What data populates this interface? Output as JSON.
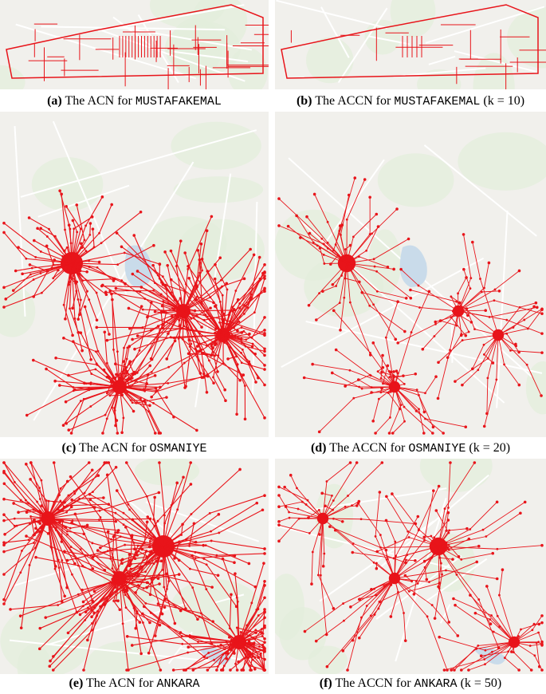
{
  "panels": [
    {
      "label": "(a)",
      "text": "The ACN for",
      "name": "MUSTAFAKEMAL"
    },
    {
      "label": "(b)",
      "text": "The ACCN for",
      "name": "MUSTAFAKEMAL",
      "param": "(k = 10)"
    },
    {
      "label": "(c)",
      "text": "The ACN for",
      "name": "OSMANIYE"
    },
    {
      "label": "(d)",
      "text": "The ACCN for",
      "name": "OSMANIYE",
      "param": "(k = 20)"
    },
    {
      "label": "(e)",
      "text": "The ACN for",
      "name": "ANKARA"
    },
    {
      "label": "(f)",
      "text": "The ACCN for",
      "name": "ANKARA",
      "param": "(k = 50)"
    }
  ]
}
